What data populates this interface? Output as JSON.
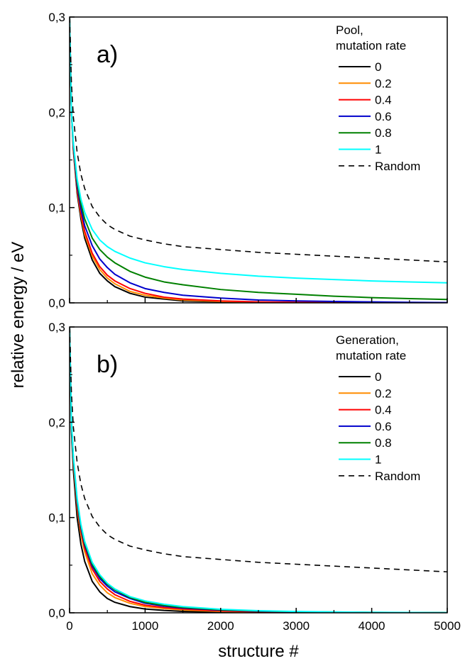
{
  "chart_data": [
    {
      "type": "line",
      "panel_label": "a)",
      "legend_title": [
        "Pool,",
        "mutation rate"
      ],
      "legend_placement": "top-right",
      "xlim": [
        0,
        5000
      ],
      "ylim": [
        0,
        0.3
      ],
      "x_ticks": [
        "0",
        "1000",
        "2000",
        "3000",
        "4000",
        "5000"
      ],
      "x_tick_values": [
        0,
        1000,
        2000,
        3000,
        4000,
        5000
      ],
      "y_ticks": [
        "0,0",
        "0,1",
        "0,2",
        "0,3"
      ],
      "y_tick_values": [
        0,
        0.1,
        0.2,
        0.3
      ],
      "x": [
        0,
        25,
        50,
        100,
        150,
        200,
        300,
        400,
        500,
        600,
        800,
        1000,
        1250,
        1500,
        2000,
        2500,
        3000,
        3500,
        4000,
        4500,
        5000
      ],
      "series": [
        {
          "name": "0",
          "color": "#000000",
          "dash": "solid",
          "values": [
            0.3,
            0.2,
            0.16,
            0.115,
            0.088,
            0.068,
            0.045,
            0.031,
            0.023,
            0.017,
            0.01,
            0.006,
            0.004,
            0.002,
            0.001,
            0.0005,
            0.0003,
            0.0002,
            0.0001,
            0.0001,
            0.0
          ]
        },
        {
          "name": "0.2",
          "color": "#ff8c00",
          "dash": "solid",
          "values": [
            0.3,
            0.2,
            0.162,
            0.118,
            0.092,
            0.072,
            0.049,
            0.035,
            0.026,
            0.02,
            0.012,
            0.008,
            0.005,
            0.003,
            0.0015,
            0.0008,
            0.0005,
            0.0003,
            0.0002,
            0.0001,
            0.0
          ]
        },
        {
          "name": "0.4",
          "color": "#ff0000",
          "dash": "solid",
          "values": [
            0.3,
            0.2,
            0.163,
            0.12,
            0.094,
            0.075,
            0.052,
            0.038,
            0.029,
            0.023,
            0.015,
            0.01,
            0.006,
            0.004,
            0.002,
            0.001,
            0.0006,
            0.0004,
            0.0003,
            0.0002,
            0.0001
          ]
        },
        {
          "name": "0.6",
          "color": "#0000cc",
          "dash": "solid",
          "values": [
            0.3,
            0.2,
            0.165,
            0.123,
            0.099,
            0.081,
            0.06,
            0.046,
            0.037,
            0.03,
            0.021,
            0.015,
            0.011,
            0.008,
            0.005,
            0.003,
            0.002,
            0.0015,
            0.001,
            0.0006,
            0.0003
          ]
        },
        {
          "name": "0.8",
          "color": "#008000",
          "dash": "solid",
          "values": [
            0.3,
            0.2,
            0.167,
            0.127,
            0.104,
            0.088,
            0.068,
            0.056,
            0.048,
            0.042,
            0.033,
            0.027,
            0.022,
            0.019,
            0.014,
            0.011,
            0.009,
            0.007,
            0.0055,
            0.0045,
            0.0035
          ]
        },
        {
          "name": "1",
          "color": "#00ffff",
          "dash": "solid",
          "values": [
            0.3,
            0.2,
            0.168,
            0.13,
            0.109,
            0.095,
            0.077,
            0.066,
            0.059,
            0.054,
            0.047,
            0.042,
            0.038,
            0.035,
            0.031,
            0.028,
            0.026,
            0.0245,
            0.023,
            0.022,
            0.021
          ]
        },
        {
          "name": "Random",
          "color": "#000000",
          "dash": "dashed",
          "values": [
            0.3,
            0.23,
            0.195,
            0.158,
            0.135,
            0.12,
            0.101,
            0.09,
            0.082,
            0.077,
            0.07,
            0.066,
            0.062,
            0.059,
            0.056,
            0.053,
            0.051,
            0.049,
            0.047,
            0.045,
            0.043
          ]
        }
      ]
    },
    {
      "type": "line",
      "panel_label": "b)",
      "legend_title": [
        "Generation,",
        "mutation rate"
      ],
      "legend_placement": "top-right",
      "xlim": [
        0,
        5000
      ],
      "ylim": [
        0,
        0.3
      ],
      "x_ticks": [
        "0",
        "1000",
        "2000",
        "3000",
        "4000",
        "5000"
      ],
      "x_tick_values": [
        0,
        1000,
        2000,
        3000,
        4000,
        5000
      ],
      "y_ticks": [
        "0,0",
        "0,1",
        "0,2",
        "0,3"
      ],
      "y_tick_values": [
        0,
        0.1,
        0.2,
        0.3
      ],
      "x": [
        0,
        25,
        50,
        100,
        150,
        200,
        300,
        400,
        500,
        600,
        800,
        1000,
        1250,
        1500,
        2000,
        2500,
        3000,
        3500,
        4000,
        4500,
        5000
      ],
      "series": [
        {
          "name": "0",
          "color": "#000000",
          "dash": "solid",
          "values": [
            0.3,
            0.19,
            0.15,
            0.1,
            0.072,
            0.054,
            0.033,
            0.022,
            0.015,
            0.011,
            0.0065,
            0.004,
            0.0025,
            0.0015,
            0.0007,
            0.0004,
            0.0002,
            0.0001,
            0.0001,
            0.0,
            0.0
          ]
        },
        {
          "name": "0.2",
          "color": "#ff8c00",
          "dash": "solid",
          "values": [
            0.3,
            0.2,
            0.158,
            0.11,
            0.082,
            0.064,
            0.041,
            0.029,
            0.021,
            0.016,
            0.01,
            0.0065,
            0.0045,
            0.003,
            0.0015,
            0.0008,
            0.0005,
            0.0003,
            0.0002,
            0.0001,
            0.0
          ]
        },
        {
          "name": "0.4",
          "color": "#ff0000",
          "dash": "solid",
          "values": [
            0.3,
            0.2,
            0.16,
            0.113,
            0.086,
            0.068,
            0.046,
            0.033,
            0.025,
            0.019,
            0.012,
            0.008,
            0.0055,
            0.004,
            0.002,
            0.001,
            0.0006,
            0.0004,
            0.0002,
            0.0001,
            0.0
          ]
        },
        {
          "name": "0.6",
          "color": "#0000cc",
          "dash": "solid",
          "values": [
            0.3,
            0.2,
            0.162,
            0.116,
            0.089,
            0.071,
            0.049,
            0.036,
            0.028,
            0.022,
            0.015,
            0.01,
            0.007,
            0.005,
            0.0028,
            0.0016,
            0.001,
            0.0006,
            0.0004,
            0.0002,
            0.0001
          ]
        },
        {
          "name": "0.8",
          "color": "#008000",
          "dash": "solid",
          "values": [
            0.3,
            0.2,
            0.163,
            0.118,
            0.091,
            0.073,
            0.051,
            0.038,
            0.03,
            0.024,
            0.016,
            0.011,
            0.0078,
            0.0057,
            0.0032,
            0.0019,
            0.0012,
            0.0008,
            0.0005,
            0.0003,
            0.0002
          ]
        },
        {
          "name": "1",
          "color": "#00ffff",
          "dash": "solid",
          "values": [
            0.3,
            0.2,
            0.164,
            0.12,
            0.093,
            0.075,
            0.053,
            0.04,
            0.031,
            0.025,
            0.017,
            0.0125,
            0.009,
            0.0065,
            0.0037,
            0.0022,
            0.0014,
            0.0009,
            0.0006,
            0.0004,
            0.0002
          ]
        },
        {
          "name": "Random",
          "color": "#000000",
          "dash": "dashed",
          "values": [
            0.3,
            0.23,
            0.195,
            0.158,
            0.135,
            0.12,
            0.101,
            0.09,
            0.082,
            0.077,
            0.07,
            0.066,
            0.062,
            0.059,
            0.056,
            0.053,
            0.051,
            0.049,
            0.047,
            0.045,
            0.043
          ]
        }
      ]
    }
  ],
  "xlabel": "structure #",
  "ylabel": "relative energy / eV"
}
